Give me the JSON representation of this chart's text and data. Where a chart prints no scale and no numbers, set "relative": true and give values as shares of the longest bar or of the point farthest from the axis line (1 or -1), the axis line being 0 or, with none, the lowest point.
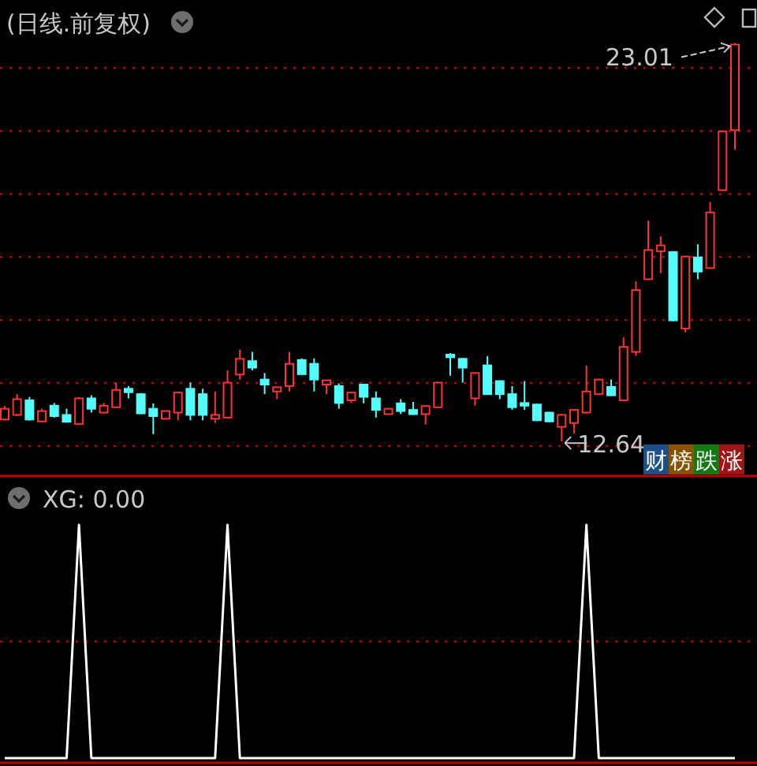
{
  "chart_data": [
    {
      "type": "candlestick",
      "title": "(日线.前复权)",
      "grid": true,
      "ylim": [
        11.74,
        24.13
      ],
      "yticks": [
        {
          "value": 12.52,
          "label": null
        },
        {
          "value": 14.16,
          "label": null
        },
        {
          "value": 15.8,
          "label": null
        },
        {
          "value": 17.44,
          "label": null
        },
        {
          "value": 19.08,
          "label": null
        },
        {
          "value": 20.72,
          "label": null
        },
        {
          "value": 22.36,
          "label": null
        }
      ],
      "categories": [
        null,
        null,
        null,
        null,
        null,
        null,
        null,
        null,
        null,
        null,
        null,
        null,
        null,
        null,
        null,
        null,
        null,
        null,
        null,
        null,
        null,
        null,
        null,
        null,
        null,
        null,
        null,
        null,
        null,
        null,
        null,
        null,
        null,
        null,
        null,
        null,
        null,
        null,
        null,
        null,
        null,
        null,
        null,
        null,
        null,
        null,
        null,
        null,
        null,
        null,
        null,
        null,
        null,
        null,
        null,
        null,
        null,
        null,
        null,
        null
      ],
      "ohlc": [
        [
          13.21,
          13.56,
          13.19,
          13.49
        ],
        [
          13.33,
          13.87,
          13.3,
          13.74
        ],
        [
          13.71,
          13.8,
          13.18,
          13.21
        ],
        [
          13.16,
          13.49,
          13.14,
          13.43
        ],
        [
          13.57,
          13.64,
          13.26,
          13.3
        ],
        [
          13.33,
          13.49,
          13.13,
          13.15
        ],
        [
          13.09,
          13.8,
          13.07,
          13.76
        ],
        [
          13.76,
          13.84,
          13.39,
          13.49
        ],
        [
          13.39,
          13.64,
          13.37,
          13.57
        ],
        [
          13.53,
          14.17,
          13.51,
          13.98
        ],
        [
          14.01,
          14.08,
          13.76,
          13.92
        ],
        [
          13.87,
          13.9,
          13.35,
          13.37
        ],
        [
          13.49,
          13.63,
          12.83,
          13.3
        ],
        [
          13.23,
          13.45,
          13.21,
          13.43
        ],
        [
          13.39,
          13.93,
          13.19,
          13.91
        ],
        [
          14.01,
          14.17,
          13.19,
          13.33
        ],
        [
          13.87,
          14.01,
          13.19,
          13.33
        ],
        [
          13.23,
          13.94,
          13.12,
          13.33
        ],
        [
          13.26,
          14.49,
          13.24,
          14.17
        ],
        [
          14.38,
          15.03,
          14.25,
          14.79
        ],
        [
          14.73,
          14.97,
          14.49,
          14.56
        ],
        [
          14.25,
          14.42,
          13.87,
          14.12
        ],
        [
          13.94,
          14.07,
          13.74,
          14.05
        ],
        [
          14.08,
          14.97,
          13.94,
          14.66
        ],
        [
          14.76,
          14.8,
          14.37,
          14.39
        ],
        [
          14.66,
          14.8,
          13.94,
          14.25
        ],
        [
          14.12,
          14.25,
          13.87,
          14.23
        ],
        [
          14.08,
          14.15,
          13.49,
          13.64
        ],
        [
          13.71,
          13.93,
          13.64,
          13.91
        ],
        [
          14.12,
          14.14,
          13.63,
          13.8
        ],
        [
          13.76,
          13.94,
          13.26,
          13.46
        ],
        [
          13.35,
          13.51,
          13.33,
          13.49
        ],
        [
          13.63,
          13.74,
          13.35,
          13.43
        ],
        [
          13.46,
          13.67,
          13.33,
          13.35
        ],
        [
          13.35,
          13.58,
          13.08,
          13.56
        ],
        [
          13.53,
          14.19,
          13.51,
          14.17
        ],
        [
          14.9,
          14.94,
          14.35,
          14.83
        ],
        [
          14.79,
          14.81,
          14.17,
          14.56
        ],
        [
          13.76,
          14.44,
          13.57,
          14.42
        ],
        [
          14.62,
          14.86,
          13.85,
          13.87
        ],
        [
          14.21,
          14.23,
          13.74,
          13.87
        ],
        [
          13.87,
          14.08,
          13.46,
          13.53
        ],
        [
          13.64,
          14.21,
          13.46,
          13.57
        ],
        [
          13.6,
          13.62,
          13.17,
          13.19
        ],
        [
          13.39,
          13.41,
          13.14,
          13.16
        ],
        [
          13.02,
          13.35,
          12.64,
          13.33
        ],
        [
          13.12,
          13.48,
          12.85,
          13.46
        ],
        [
          13.39,
          14.62,
          13.37,
          13.94
        ],
        [
          13.87,
          14.27,
          13.85,
          14.25
        ],
        [
          14.06,
          14.25,
          13.82,
          13.84
        ],
        [
          13.71,
          15.35,
          13.69,
          15.1
        ],
        [
          14.97,
          16.81,
          14.87,
          16.58
        ],
        [
          16.86,
          18.39,
          16.84,
          17.62
        ],
        [
          17.59,
          17.98,
          17.02,
          17.74
        ],
        [
          17.57,
          17.59,
          15.77,
          15.79
        ],
        [
          15.58,
          17.47,
          15.48,
          17.45
        ],
        [
          17.43,
          17.77,
          16.86,
          17.06
        ],
        [
          17.15,
          18.87,
          17.13,
          18.6
        ],
        [
          19.18,
          20.73,
          19.16,
          20.71
        ],
        [
          20.74,
          23.01,
          20.23,
          22.97
        ]
      ],
      "colors": [
        "#ff3232",
        "#ff3232",
        "#54fcfc",
        "#ff3232",
        "#54fcfc",
        "#54fcfc",
        "#ff3232",
        "#54fcfc",
        "#ff3232",
        "#ff3232",
        "#54fcfc",
        "#54fcfc",
        "#54fcfc",
        "#ff3232",
        "#ff3232",
        "#54fcfc",
        "#54fcfc",
        "#ff3232",
        "#ff3232",
        "#ff3232",
        "#54fcfc",
        "#54fcfc",
        "#ff3232",
        "#ff3232",
        "#54fcfc",
        "#54fcfc",
        "#ff3232",
        "#54fcfc",
        "#ff3232",
        "#54fcfc",
        "#54fcfc",
        "#ff3232",
        "#54fcfc",
        "#54fcfc",
        "#ff3232",
        "#ff3232",
        "#54fcfc",
        "#54fcfc",
        "#ff3232",
        "#54fcfc",
        "#54fcfc",
        "#54fcfc",
        "#54fcfc",
        "#54fcfc",
        "#54fcfc",
        "#ff3232",
        "#ff3232",
        "#ff3232",
        "#ff3232",
        "#54fcfc",
        "#ff3232",
        "#ff3232",
        "#ff3232",
        "#ff3232",
        "#54fcfc",
        "#ff3232",
        "#54fcfc",
        "#ff3232",
        "#ff3232",
        "#ff3232"
      ],
      "annotations": [
        "23.01",
        "12.64",
        "财",
        "榜",
        "跌",
        "涨"
      ]
    },
    {
      "type": "line",
      "title": "XG: 0.00",
      "relative": true,
      "color": "#ffffff",
      "ref_lines": [
        {
          "axis": "y",
          "value": 0.5,
          "color": "#a01010",
          "line_style": "dotted"
        }
      ],
      "categories": [
        null,
        null,
        null,
        null,
        null,
        null,
        null,
        null,
        null,
        null,
        null,
        null,
        null,
        null,
        null,
        null,
        null,
        null,
        null,
        null,
        null,
        null,
        null,
        null,
        null,
        null,
        null,
        null,
        null,
        null,
        null,
        null,
        null,
        null,
        null,
        null,
        null,
        null,
        null,
        null,
        null,
        null,
        null,
        null,
        null,
        null,
        null,
        null,
        null,
        null,
        null,
        null,
        null,
        null,
        null,
        null,
        null,
        null,
        null,
        null
      ],
      "values": [
        0,
        0,
        0,
        0,
        0,
        0,
        1,
        0,
        0,
        0,
        0,
        0,
        0,
        0,
        0,
        0,
        0,
        0,
        1,
        0,
        0,
        0,
        0,
        0,
        0,
        0,
        0,
        0,
        0,
        0,
        0,
        0,
        0,
        0,
        0,
        0,
        0,
        0,
        0,
        0,
        0,
        0,
        0,
        0,
        0,
        0,
        0,
        1,
        0,
        0,
        0,
        0,
        0,
        0,
        0,
        0,
        0,
        0,
        0,
        0
      ]
    }
  ]
}
